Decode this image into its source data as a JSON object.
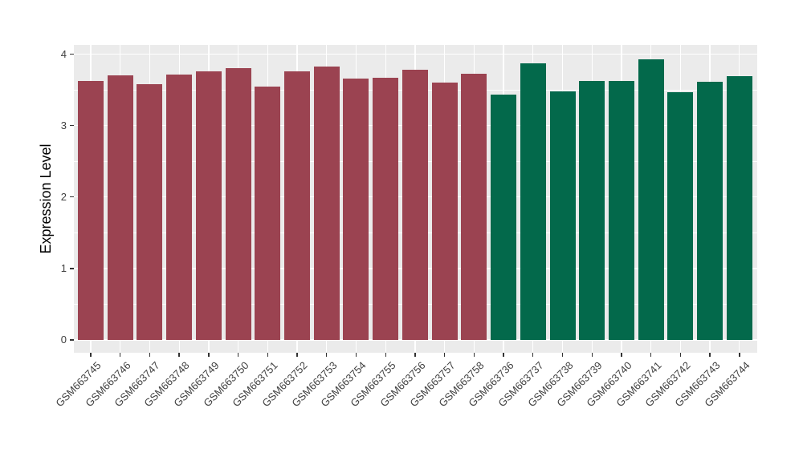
{
  "chart_data": {
    "type": "bar",
    "title": "",
    "ylabel": "Expression Level",
    "xlabel": "",
    "ylim": [
      0,
      4
    ],
    "ytick_values": [
      0,
      1,
      2,
      3,
      4
    ],
    "ytick_labels": [
      "0",
      "1",
      "2",
      "3",
      "4"
    ],
    "minor_gridlines": [
      0.5,
      1.5,
      2.5,
      3.5
    ],
    "grid": "white major and minor gridlines on gray panel",
    "legend": "none",
    "panel_bg": "#EBEBEB",
    "group_colors": {
      "group1": "#9B4351",
      "group2": "#03694B"
    },
    "bars": [
      {
        "label": "GSM663745",
        "value": 3.62,
        "group": "group1"
      },
      {
        "label": "GSM663746",
        "value": 3.7,
        "group": "group1"
      },
      {
        "label": "GSM663747",
        "value": 3.58,
        "group": "group1"
      },
      {
        "label": "GSM663748",
        "value": 3.71,
        "group": "group1"
      },
      {
        "label": "GSM663749",
        "value": 3.76,
        "group": "group1"
      },
      {
        "label": "GSM663750",
        "value": 3.81,
        "group": "group1"
      },
      {
        "label": "GSM663751",
        "value": 3.55,
        "group": "group1"
      },
      {
        "label": "GSM663752",
        "value": 3.76,
        "group": "group1"
      },
      {
        "label": "GSM663753",
        "value": 3.83,
        "group": "group1"
      },
      {
        "label": "GSM663754",
        "value": 3.66,
        "group": "group1"
      },
      {
        "label": "GSM663755",
        "value": 3.67,
        "group": "group1"
      },
      {
        "label": "GSM663756",
        "value": 3.78,
        "group": "group1"
      },
      {
        "label": "GSM663757",
        "value": 3.6,
        "group": "group1"
      },
      {
        "label": "GSM663758",
        "value": 3.73,
        "group": "group1"
      },
      {
        "label": "GSM663736",
        "value": 3.43,
        "group": "group2"
      },
      {
        "label": "GSM663737",
        "value": 3.87,
        "group": "group2"
      },
      {
        "label": "GSM663738",
        "value": 3.48,
        "group": "group2"
      },
      {
        "label": "GSM663739",
        "value": 3.62,
        "group": "group2"
      },
      {
        "label": "GSM663740",
        "value": 3.63,
        "group": "group2"
      },
      {
        "label": "GSM663741",
        "value": 3.93,
        "group": "group2"
      },
      {
        "label": "GSM663742",
        "value": 3.47,
        "group": "group2"
      },
      {
        "label": "GSM663743",
        "value": 3.61,
        "group": "group2"
      },
      {
        "label": "GSM663744",
        "value": 3.69,
        "group": "group2"
      }
    ]
  }
}
